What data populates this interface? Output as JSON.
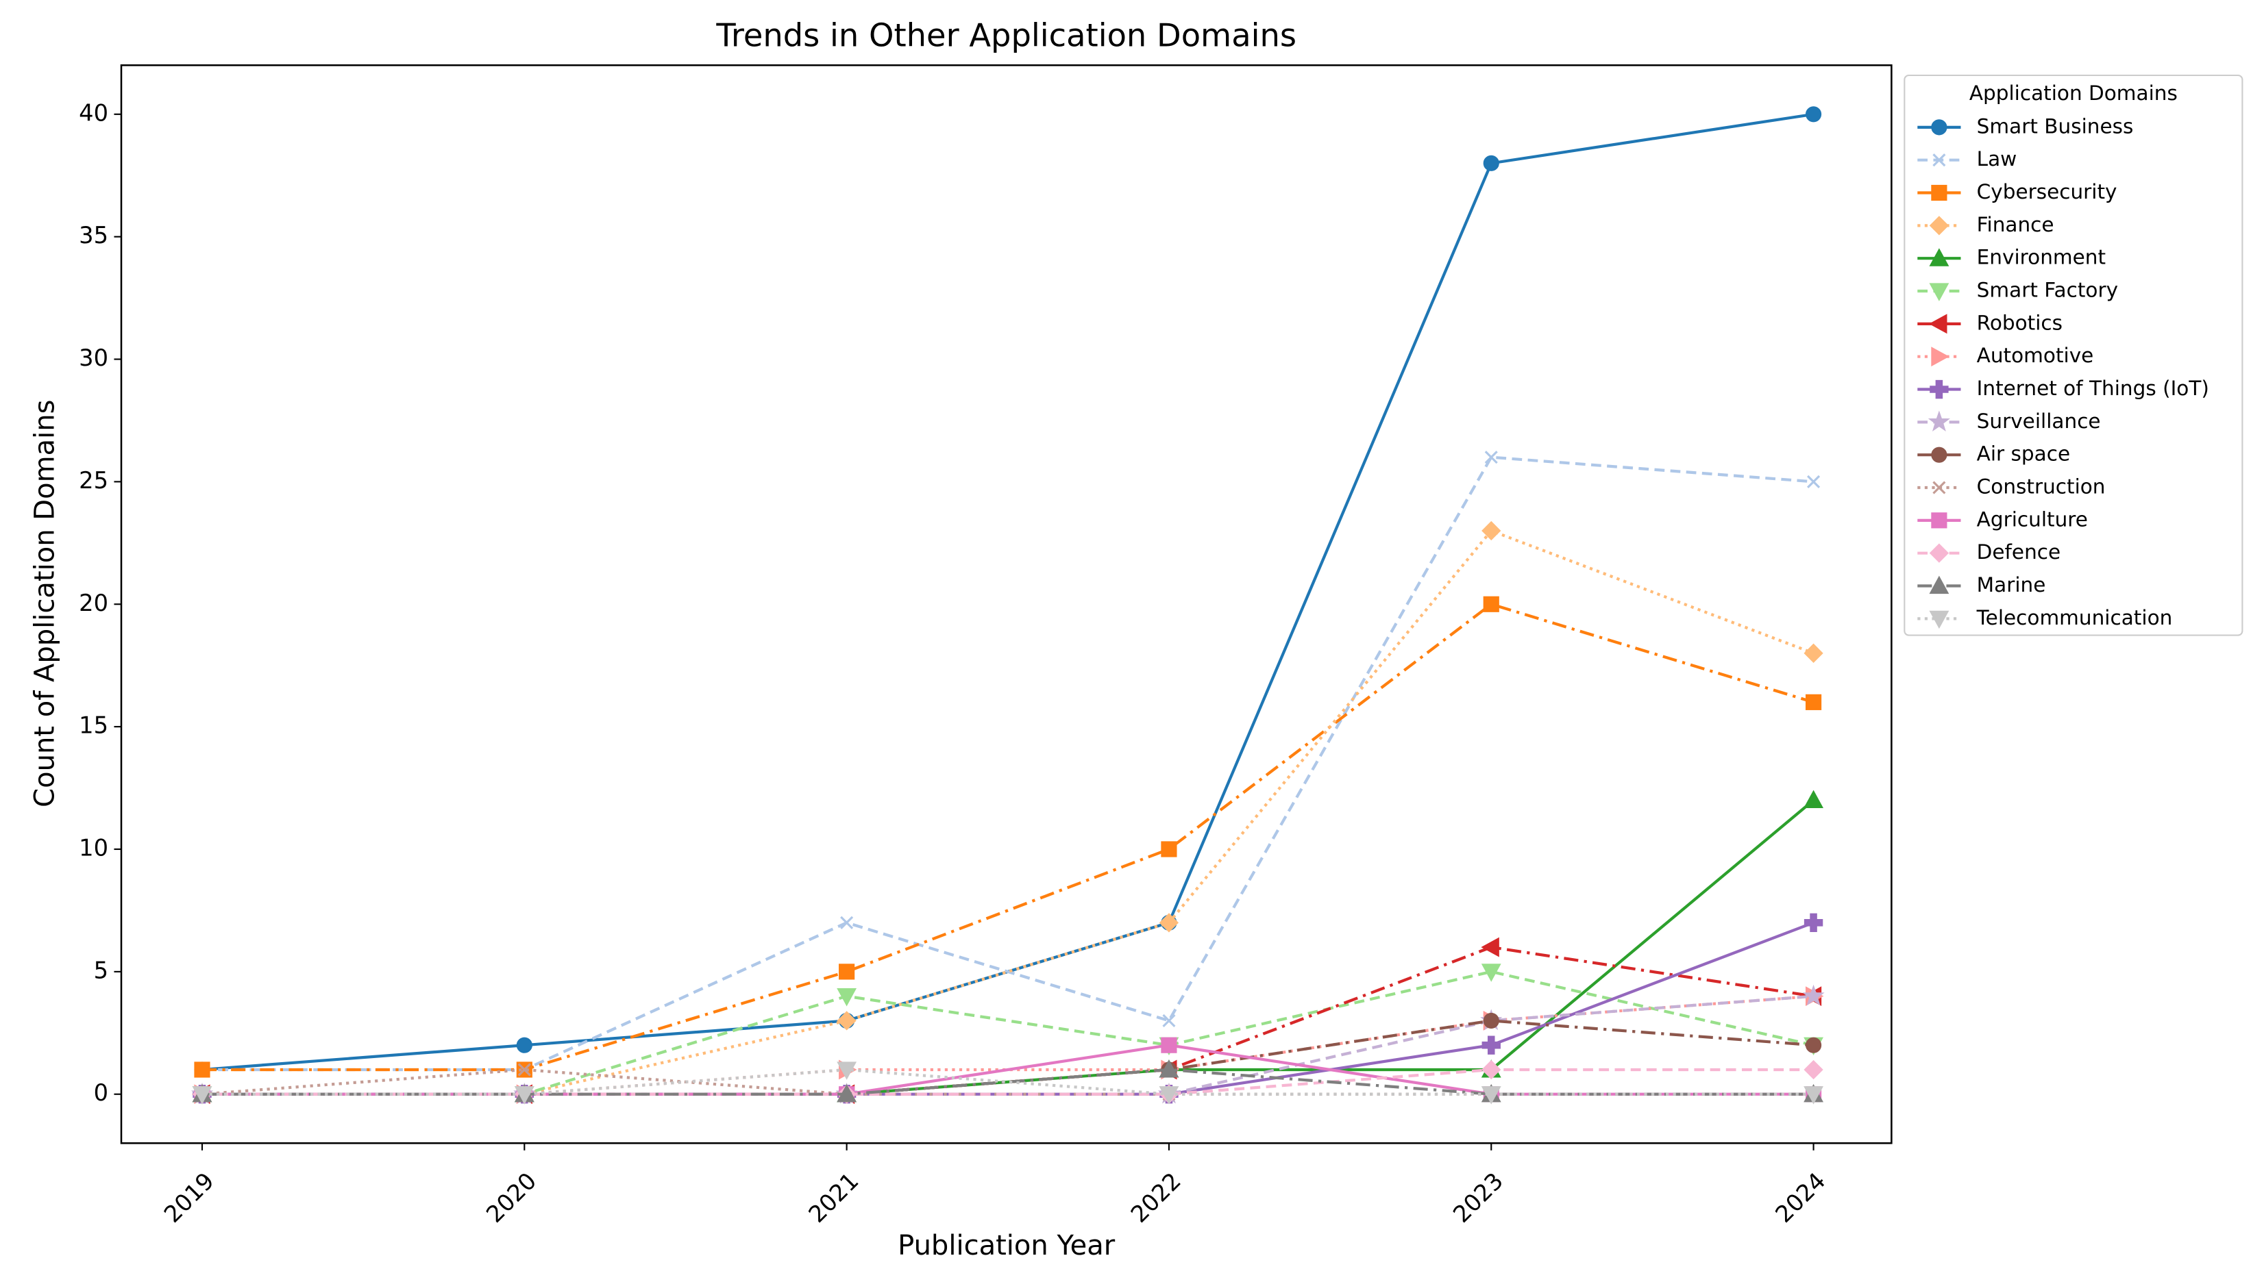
{
  "chart_data": {
    "type": "line",
    "title": "Trends in Other Application Domains",
    "x_label": "Publication Year",
    "y_label": "Count of Application Domains",
    "categories": [
      "2019",
      "2020",
      "2021",
      "2022",
      "2023",
      "2024"
    ],
    "ylim": [
      -2,
      42
    ],
    "yticks": [
      0,
      5,
      10,
      15,
      20,
      25,
      30,
      35,
      40
    ],
    "legend_title": "Application Domains",
    "legend_position": "outside-upper-right",
    "series": [
      {
        "name": "Smart Business",
        "color": "#1f77b4",
        "dash": "solid",
        "marker": "circle",
        "values": [
          1,
          2,
          3,
          7,
          38,
          40
        ]
      },
      {
        "name": "Law",
        "color": "#aec7e8",
        "dash": "dashed",
        "marker": "x",
        "values": [
          1,
          1,
          7,
          3,
          26,
          25
        ]
      },
      {
        "name": "Cybersecurity",
        "color": "#ff7f0e",
        "dash": "dashdot",
        "marker": "square",
        "values": [
          1,
          1,
          5,
          10,
          20,
          16
        ]
      },
      {
        "name": "Finance",
        "color": "#ffbb78",
        "dash": "dotted",
        "marker": "diamond",
        "values": [
          0,
          0,
          3,
          7,
          23,
          18
        ]
      },
      {
        "name": "Environment",
        "color": "#2ca02c",
        "dash": "solid",
        "marker": "triangle-up",
        "values": [
          0,
          0,
          0,
          1,
          1,
          12
        ]
      },
      {
        "name": "Smart Factory",
        "color": "#98df8a",
        "dash": "dashed",
        "marker": "triangle-down",
        "values": [
          0,
          0,
          4,
          2,
          5,
          2
        ]
      },
      {
        "name": "Robotics",
        "color": "#d62728",
        "dash": "dashdot",
        "marker": "triangle-left",
        "values": [
          0,
          0,
          0,
          1,
          6,
          4
        ]
      },
      {
        "name": "Automotive",
        "color": "#ff9896",
        "dash": "dotted",
        "marker": "triangle-right",
        "values": [
          0,
          0,
          1,
          1,
          3,
          4
        ]
      },
      {
        "name": "Internet of Things (IoT)",
        "color": "#9467bd",
        "dash": "solid",
        "marker": "plus",
        "values": [
          0,
          0,
          0,
          0,
          2,
          7
        ]
      },
      {
        "name": "Surveillance",
        "color": "#c5b0d5",
        "dash": "dashed",
        "marker": "star",
        "values": [
          0,
          0,
          0,
          0,
          3,
          4
        ]
      },
      {
        "name": "Air space",
        "color": "#8c564b",
        "dash": "dashdot",
        "marker": "circle",
        "values": [
          0,
          0,
          0,
          1,
          3,
          2
        ]
      },
      {
        "name": "Construction",
        "color": "#c49c94",
        "dash": "dotted",
        "marker": "x",
        "values": [
          0,
          1,
          0,
          0,
          0,
          0
        ]
      },
      {
        "name": "Agriculture",
        "color": "#e377c2",
        "dash": "solid",
        "marker": "square",
        "values": [
          0,
          0,
          0,
          2,
          0,
          0
        ]
      },
      {
        "name": "Defence",
        "color": "#f7b6d2",
        "dash": "dashed",
        "marker": "diamond",
        "values": [
          0,
          0,
          0,
          0,
          1,
          1
        ]
      },
      {
        "name": "Marine",
        "color": "#7f7f7f",
        "dash": "dashdot",
        "marker": "triangle-up",
        "values": [
          0,
          0,
          0,
          1,
          0,
          0
        ]
      },
      {
        "name": "Telecommunication",
        "color": "#c7c7c7",
        "dash": "dotted",
        "marker": "triangle-down",
        "values": [
          0,
          0,
          1,
          0,
          0,
          0
        ]
      }
    ]
  }
}
